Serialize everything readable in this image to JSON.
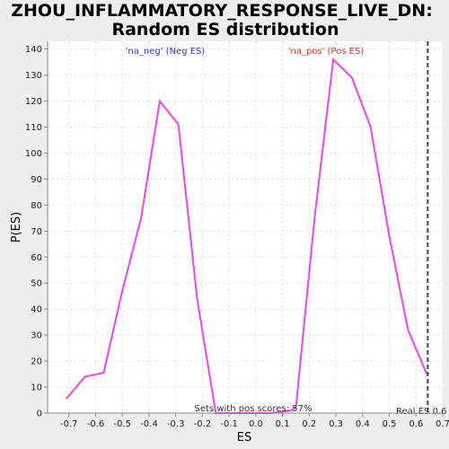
{
  "chart_data": {
    "type": "line",
    "title_line1": "ZHOU_INFLAMMATORY_RESPONSE_LIVE_DN:",
    "title_line2": "Random ES distribution",
    "xlabel": "ES",
    "ylabel": "P(ES)",
    "xlim": [
      -0.78,
      0.7
    ],
    "ylim": [
      0,
      143
    ],
    "x_ticks": [
      -0.7,
      -0.6,
      -0.5,
      -0.4,
      -0.3,
      -0.2,
      -0.1,
      0.0,
      0.1,
      0.2,
      0.3,
      0.4,
      0.5,
      0.6,
      0.7
    ],
    "x_tick_labels": [
      "-0.7",
      "-0.6",
      "-0.5",
      "-0.4",
      "-0.3",
      "-0.2",
      "-0.1",
      "0.0",
      "0.1",
      "0.2",
      "0.3",
      "0.4",
      "0.5",
      "0.6",
      "0.7"
    ],
    "y_ticks": [
      0,
      10,
      20,
      30,
      40,
      50,
      60,
      70,
      80,
      90,
      100,
      110,
      120,
      130,
      140
    ],
    "y_tick_labels": [
      "0",
      "10",
      "20",
      "30",
      "40",
      "50",
      "60",
      "70",
      "80",
      "90",
      "100",
      "110",
      "120",
      "130",
      "140"
    ],
    "grid": true,
    "series": [
      {
        "color": "#ee44ee",
        "x": [
          -0.71,
          -0.64,
          -0.57,
          -0.5,
          -0.43,
          -0.36,
          -0.29,
          -0.22,
          -0.15,
          -0.08,
          -0.01,
          0.06,
          0.13,
          0.15,
          0.22,
          0.29,
          0.36,
          0.43,
          0.5,
          0.57,
          0.64
        ],
        "y": [
          5.5,
          14,
          15.5,
          47,
          75,
          120,
          111,
          44,
          0,
          0,
          0,
          0,
          1,
          2,
          75,
          136,
          129,
          110,
          68,
          32,
          15
        ]
      }
    ],
    "annotations": {
      "neg_label": "'na_neg' (Neg ES)",
      "neg_color": "#3333bb",
      "pos_label": "'na_pos' (Pos ES)",
      "pos_color": "#cc3333",
      "sets_text": "Sets with pos scores: 57%",
      "real_es_text": "Real ES 0.6",
      "real_es_value": 0.644
    }
  }
}
